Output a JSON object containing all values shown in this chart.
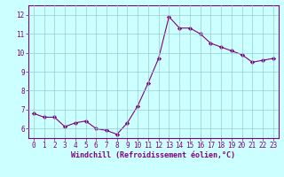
{
  "x": [
    0,
    1,
    2,
    3,
    4,
    5,
    6,
    7,
    8,
    9,
    10,
    11,
    12,
    13,
    14,
    15,
    16,
    17,
    18,
    19,
    20,
    21,
    22,
    23
  ],
  "y": [
    6.8,
    6.6,
    6.6,
    6.1,
    6.3,
    6.4,
    6.0,
    5.9,
    5.7,
    6.3,
    7.2,
    8.4,
    9.7,
    11.9,
    11.3,
    11.3,
    11.0,
    10.5,
    10.3,
    10.1,
    9.9,
    9.5,
    9.6,
    9.7
  ],
  "line_color": "#800080",
  "marker": "D",
  "marker_size": 2.2,
  "bg_color": "#ccffff",
  "grid_color": "#99cccc",
  "xlabel": "Windchill (Refroidissement éolien,°C)",
  "xlabel_color": "#800080",
  "tick_color": "#800080",
  "ylim": [
    5.5,
    12.5
  ],
  "xlim": [
    -0.5,
    23.5
  ],
  "yticks": [
    6,
    7,
    8,
    9,
    10,
    11,
    12
  ],
  "xticks": [
    0,
    1,
    2,
    3,
    4,
    5,
    6,
    7,
    8,
    9,
    10,
    11,
    12,
    13,
    14,
    15,
    16,
    17,
    18,
    19,
    20,
    21,
    22,
    23
  ],
  "tick_fontsize": 5.5,
  "xlabel_fontsize": 6.0,
  "linewidth": 0.8
}
